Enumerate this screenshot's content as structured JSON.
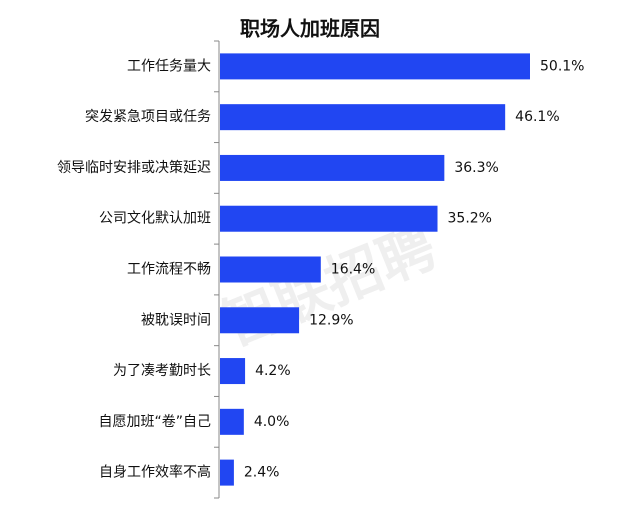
{
  "chart_data": {
    "type": "barh",
    "title": "职场人加班原因",
    "watermark": "智联招聘",
    "categories": [
      "工作任务量大",
      "突发紧急项目或任务",
      "领导临时安排或决策延迟",
      "公司文化默认加班",
      "工作流程不畅",
      "被耽误时间",
      "为了凑考勤时长",
      "自愿加班“卷”自己",
      "自身工作效率不高"
    ],
    "values": [
      50.1,
      46.1,
      36.3,
      35.2,
      16.4,
      12.9,
      4.2,
      4.0,
      2.4
    ],
    "value_labels": [
      "50.1%",
      "46.1%",
      "36.3%",
      "35.2%",
      "16.4%",
      "12.9%",
      "4.2%",
      "4.0%",
      "2.4%"
    ],
    "color": "#2146f2"
  }
}
